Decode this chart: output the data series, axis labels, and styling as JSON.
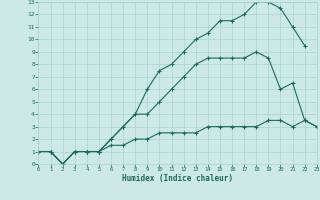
{
  "title": "",
  "xlabel": "Humidex (Indice chaleur)",
  "xlim": [
    0,
    23
  ],
  "ylim": [
    0,
    13
  ],
  "xticks": [
    0,
    1,
    2,
    3,
    4,
    5,
    6,
    7,
    8,
    9,
    10,
    11,
    12,
    13,
    14,
    15,
    16,
    17,
    18,
    19,
    20,
    21,
    22,
    23
  ],
  "yticks": [
    0,
    1,
    2,
    3,
    4,
    5,
    6,
    7,
    8,
    9,
    10,
    11,
    12,
    13
  ],
  "bg_color": "#cce9e8",
  "grid_color": "#aad4d2",
  "line_color": "#1a6b5a",
  "line1_x": [
    0,
    1,
    2,
    3,
    4,
    5,
    6,
    7,
    8,
    9,
    10,
    11,
    12,
    13,
    14,
    15,
    16,
    17,
    18,
    19,
    20,
    21,
    22
  ],
  "line1_y": [
    1,
    1,
    0,
    1,
    1,
    1,
    2,
    3,
    4,
    6,
    7.5,
    8,
    9,
    10,
    10.5,
    11.5,
    11.5,
    12,
    13,
    13,
    12.5,
    11,
    9.5
  ],
  "line2_x": [
    0,
    1,
    2,
    3,
    4,
    5,
    6,
    7,
    8,
    9,
    10,
    11,
    12,
    13,
    14,
    15,
    16,
    17,
    18,
    19,
    20,
    21,
    22,
    23
  ],
  "line2_y": [
    1,
    1,
    0,
    1,
    1,
    1,
    2,
    3,
    4,
    4,
    5,
    6,
    7,
    8,
    8.5,
    8.5,
    8.5,
    8.5,
    9,
    8.5,
    6,
    6.5,
    3.5,
    3
  ],
  "line3_x": [
    0,
    1,
    2,
    3,
    4,
    5,
    6,
    7,
    8,
    9,
    10,
    11,
    12,
    13,
    14,
    15,
    16,
    17,
    18,
    19,
    20,
    21,
    22,
    23
  ],
  "line3_y": [
    1,
    1,
    0,
    1,
    1,
    1,
    1.5,
    1.5,
    2,
    2,
    2.5,
    2.5,
    2.5,
    2.5,
    3,
    3,
    3,
    3,
    3,
    3.5,
    3.5,
    3,
    3.5,
    3
  ]
}
